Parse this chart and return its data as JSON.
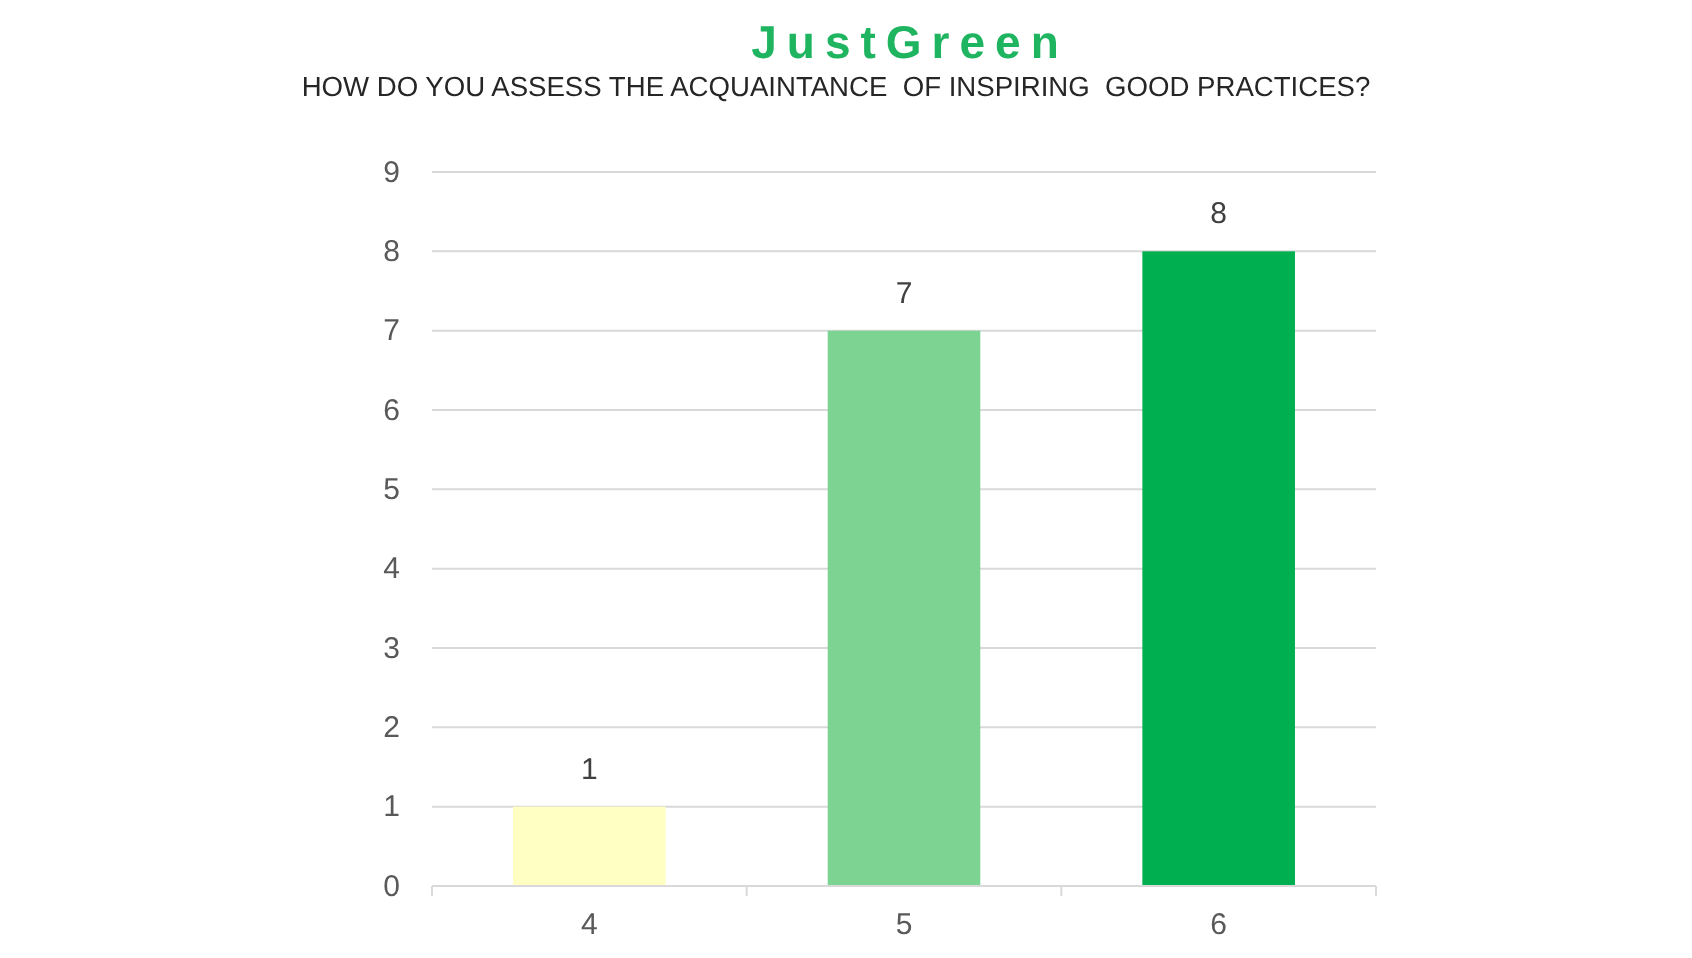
{
  "chart_data": {
    "type": "bar",
    "title": "JustGreen",
    "subtitle": "HOW DO YOU ASSESS THE ACQUAINTANCE  OF INSPIRING  GOOD PRACTICES?",
    "categories": [
      "4",
      "5",
      "6"
    ],
    "values": [
      1,
      7,
      8
    ],
    "colors": [
      "#ffffc4",
      "#7cd392",
      "#00b050"
    ],
    "ylim": [
      0,
      9
    ],
    "yticks": [
      0,
      1,
      2,
      3,
      4,
      5,
      6,
      7,
      8,
      9
    ],
    "grid": "y",
    "data_labels": true
  }
}
